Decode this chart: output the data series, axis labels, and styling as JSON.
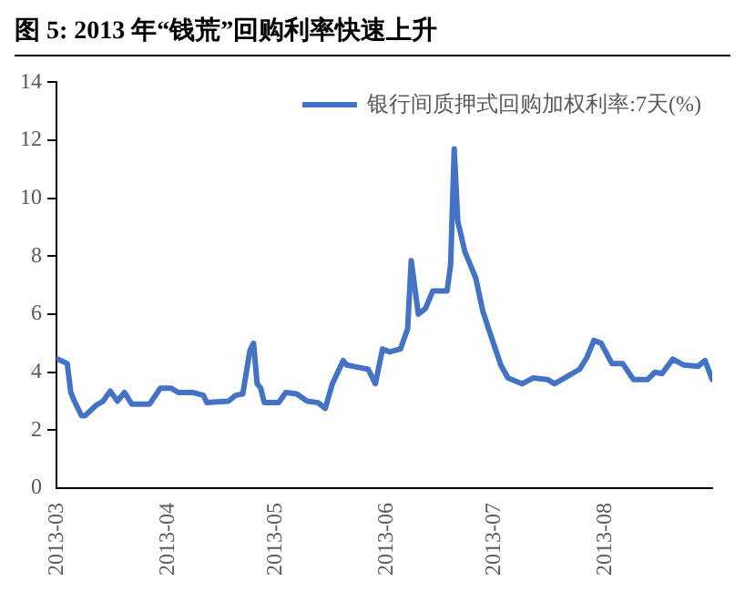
{
  "chart_data": {
    "type": "line",
    "title": "图 5: 2013 年“钱荒”回购利率快速上升",
    "x": [
      "2013-03-01",
      "2013-03-04",
      "2013-03-05",
      "2013-03-06",
      "2013-03-08",
      "2013-03-09",
      "2013-03-12",
      "2013-03-14",
      "2013-03-16",
      "2013-03-18",
      "2013-03-20",
      "2013-03-22",
      "2013-03-27",
      "2013-03-30",
      "2013-04-02",
      "2013-04-04",
      "2013-04-08",
      "2013-04-11",
      "2013-04-12",
      "2013-04-18",
      "2013-04-20",
      "2013-04-22",
      "2013-04-24",
      "2013-04-25",
      "2013-04-26",
      "2013-04-27",
      "2013-04-28",
      "2013-05-02",
      "2013-05-04",
      "2013-05-07",
      "2013-05-10",
      "2013-05-13",
      "2013-05-15",
      "2013-05-17",
      "2013-05-20",
      "2013-05-21",
      "2013-05-23",
      "2013-05-27",
      "2013-05-29",
      "2013-05-31",
      "2013-06-02",
      "2013-06-05",
      "2013-06-07",
      "2013-06-08",
      "2013-06-10",
      "2013-06-12",
      "2013-06-14",
      "2013-06-18",
      "2013-06-19",
      "2013-06-20",
      "2013-06-21",
      "2013-06-23",
      "2013-06-25",
      "2013-06-26",
      "2013-06-28",
      "2013-06-30",
      "2013-07-03",
      "2013-07-05",
      "2013-07-09",
      "2013-07-12",
      "2013-07-16",
      "2013-07-18",
      "2013-07-25",
      "2013-07-27",
      "2013-07-29",
      "2013-07-31",
      "2013-08-03",
      "2013-08-06",
      "2013-08-09",
      "2013-08-13",
      "2013-08-15",
      "2013-08-17",
      "2013-08-20",
      "2013-08-23",
      "2013-08-27",
      "2013-08-29",
      "2013-08-31"
    ],
    "series": [
      {
        "name": "银行间质押式回购加权利率:7天(%)",
        "color": "#4472c4",
        "values": [
          4.47,
          4.3,
          3.3,
          3.0,
          2.5,
          2.5,
          2.85,
          3.0,
          3.35,
          3.0,
          3.3,
          2.9,
          2.9,
          3.45,
          3.45,
          3.3,
          3.3,
          3.2,
          2.95,
          3.0,
          3.2,
          3.25,
          4.75,
          5.0,
          3.6,
          3.45,
          2.95,
          2.95,
          3.3,
          3.25,
          3.0,
          2.95,
          2.75,
          3.6,
          4.4,
          4.25,
          4.2,
          4.1,
          3.6,
          4.8,
          4.7,
          4.8,
          5.5,
          7.85,
          6.0,
          6.2,
          6.8,
          6.8,
          7.7,
          11.7,
          9.2,
          8.15,
          7.55,
          7.25,
          6.1,
          5.35,
          4.25,
          3.8,
          3.6,
          3.8,
          3.75,
          3.6,
          4.1,
          4.5,
          5.1,
          5.0,
          4.3,
          4.3,
          3.75,
          3.75,
          4.0,
          3.95,
          4.45,
          4.25,
          4.2,
          4.4,
          3.75
        ]
      }
    ],
    "xlim": [
      "2013-03-01",
      "2013-08-31"
    ],
    "xticks": [
      "2013-03",
      "2013-04",
      "2013-05",
      "2013-06",
      "2013-07",
      "2013-08"
    ],
    "ylim": [
      0,
      14
    ],
    "yticks": [
      0,
      2,
      4,
      6,
      8,
      10,
      12,
      14
    ],
    "grid": false,
    "legend": "top right",
    "marker": "none",
    "line_style": "solid"
  }
}
